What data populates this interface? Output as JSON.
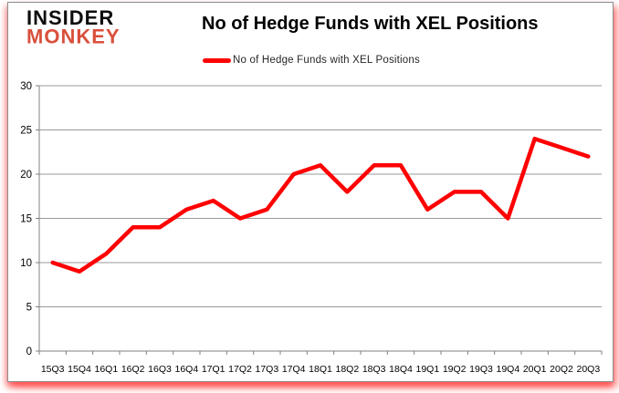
{
  "logo": {
    "line1": "INSIDER",
    "line2": "MONKEY",
    "line2_color": "#d9503c"
  },
  "title": "No of Hedge Funds with XEL Positions",
  "legend": {
    "label": "No of Hedge Funds with XEL Positions",
    "swatch_color": "#ff0000"
  },
  "chart_data": {
    "type": "line",
    "title": "No of Hedge Funds with XEL Positions",
    "categories": [
      "15Q3",
      "15Q4",
      "16Q1",
      "16Q2",
      "16Q3",
      "16Q4",
      "17Q1",
      "17Q2",
      "17Q3",
      "17Q4",
      "18Q1",
      "18Q2",
      "18Q3",
      "18Q4",
      "19Q1",
      "19Q2",
      "19Q3",
      "19Q4",
      "20Q1",
      "20Q2",
      "20Q3"
    ],
    "series": [
      {
        "name": "No of Hedge Funds with XEL Positions",
        "color": "#ff0000",
        "values": [
          10,
          9,
          11,
          14,
          14,
          16,
          17,
          15,
          16,
          20,
          21,
          18,
          21,
          21,
          16,
          18,
          18,
          15,
          24,
          23,
          22
        ]
      }
    ],
    "xlabel": "",
    "ylabel": "",
    "ylim": [
      0,
      30
    ],
    "yticks": [
      0,
      5,
      10,
      15,
      20,
      25,
      30
    ],
    "grid": "horizontal",
    "legend_position": "top-center",
    "colors": {
      "gridline": "#9a9a9a",
      "axis": "#808080",
      "tick_label": "#000000"
    }
  }
}
